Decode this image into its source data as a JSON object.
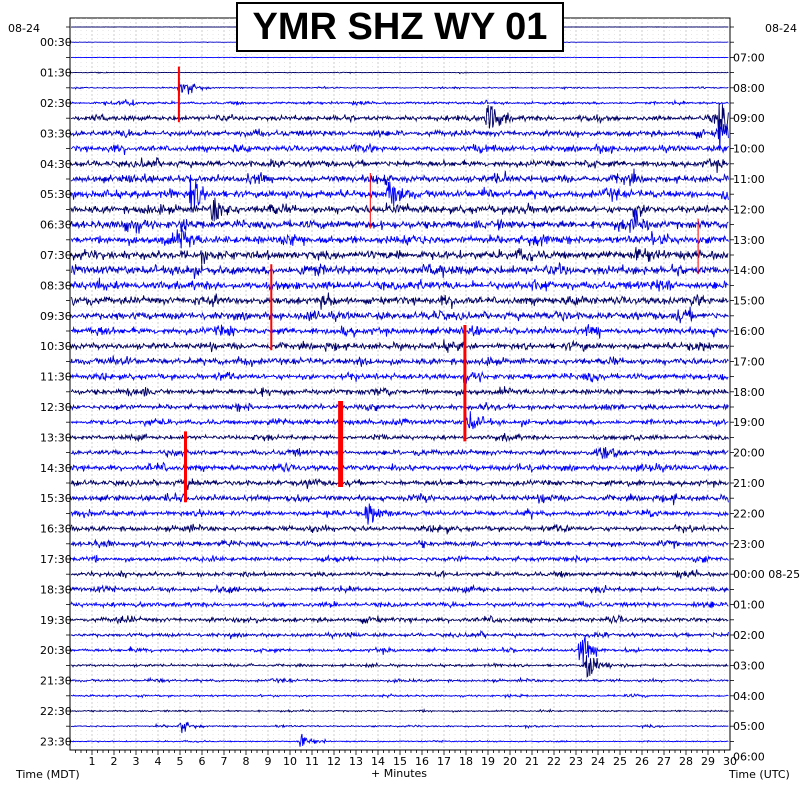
{
  "chart_data": {
    "type": "line",
    "title": "YMR SHZ WY 01",
    "left_date": "08-24",
    "right_date": "08-24",
    "xlabel": "+ Minutes",
    "left_axis_label": "Time (MDT)",
    "right_axis_label": "Time (UTC)",
    "x_ticks": [
      "1",
      "2",
      "3",
      "4",
      "5",
      "6",
      "7",
      "8",
      "9",
      "10",
      "11",
      "12",
      "13",
      "14",
      "15",
      "16",
      "17",
      "18",
      "19",
      "20",
      "21",
      "22",
      "23",
      "24",
      "25",
      "26",
      "27",
      "28",
      "29",
      "30"
    ],
    "xlim": [
      0,
      30
    ],
    "left_times": [
      "00:30",
      "01:30",
      "02:30",
      "03:30",
      "04:30",
      "05:30",
      "06:30",
      "07:30",
      "08:30",
      "09:30",
      "10:30",
      "11:30",
      "12:30",
      "13:30",
      "14:30",
      "15:30",
      "16:30",
      "17:30",
      "18:30",
      "19:30",
      "20:30",
      "21:30",
      "22:30",
      "23:30"
    ],
    "right_times": [
      "07:00",
      "08:00",
      "09:00",
      "10:00",
      "11:00",
      "12:00",
      "13:00",
      "14:00",
      "15:00",
      "16:00",
      "17:00",
      "18:00",
      "19:00",
      "20:00",
      "21:00",
      "22:00",
      "23:00",
      "00:00 08-25",
      "01:00",
      "02:00",
      "03:00",
      "04:00",
      "05:00",
      "06:00"
    ],
    "trace_count": 48,
    "trace_colors": [
      "#000066",
      "#0000cc",
      "#0000ff"
    ],
    "pick_color": "#ff0000",
    "activity_profile": [
      0.1,
      0.1,
      0.1,
      0.2,
      0.4,
      0.8,
      1.6,
      1.8,
      1.8,
      2.0,
      2.2,
      2.4,
      2.4,
      2.6,
      2.6,
      2.8,
      2.8,
      2.6,
      2.4,
      2.4,
      2.2,
      2.0,
      2.0,
      1.8,
      1.8,
      1.6,
      1.6,
      1.4,
      1.6,
      1.8,
      1.8,
      1.8,
      1.6,
      1.6,
      1.6,
      1.4,
      1.4,
      1.4,
      1.4,
      1.4,
      1.2,
      1.0,
      0.8,
      0.8,
      0.6,
      0.5,
      0.5,
      0.4
    ],
    "events": [
      {
        "row": 4,
        "minute": 5.0,
        "amp": 10
      },
      {
        "row": 5,
        "minute": 2.5,
        "amp": 3
      },
      {
        "row": 6,
        "minute": 19.0,
        "amp": 14
      },
      {
        "row": 6,
        "minute": 29.5,
        "amp": 14
      },
      {
        "row": 7,
        "minute": 29.5,
        "amp": 12
      },
      {
        "row": 11,
        "minute": 5.5,
        "amp": 12
      },
      {
        "row": 11,
        "minute": 14.5,
        "amp": 12
      },
      {
        "row": 12,
        "minute": 6.5,
        "amp": 10
      },
      {
        "row": 13,
        "minute": 2.5,
        "amp": 8
      },
      {
        "row": 13,
        "minute": 25.5,
        "amp": 10
      },
      {
        "row": 14,
        "minute": 5.0,
        "amp": 8
      },
      {
        "row": 26,
        "minute": 18.0,
        "amp": 10
      },
      {
        "row": 28,
        "minute": 24.0,
        "amp": 8
      },
      {
        "row": 32,
        "minute": 13.5,
        "amp": 10
      },
      {
        "row": 41,
        "minute": 23.2,
        "amp": 14
      },
      {
        "row": 42,
        "minute": 23.5,
        "amp": 12
      },
      {
        "row": 46,
        "minute": 5.0,
        "amp": 5
      },
      {
        "row": 47,
        "minute": 10.5,
        "amp": 5
      }
    ],
    "picks": [
      {
        "minute": 4.95,
        "start_row": 3,
        "end_row": 6,
        "width": 2
      },
      {
        "minute": 5.25,
        "start_row": 27,
        "end_row": 31,
        "width": 3
      },
      {
        "minute": 9.15,
        "start_row": 16,
        "end_row": 21,
        "width": 2
      },
      {
        "minute": 12.3,
        "start_row": 25,
        "end_row": 30,
        "width": 5
      },
      {
        "minute": 17.95,
        "start_row": 20,
        "end_row": 27,
        "width": 3
      },
      {
        "minute": 13.65,
        "start_row": 10,
        "end_row": 13,
        "width": 1
      },
      {
        "minute": 28.55,
        "start_row": 13,
        "end_row": 16,
        "width": 1
      }
    ]
  }
}
